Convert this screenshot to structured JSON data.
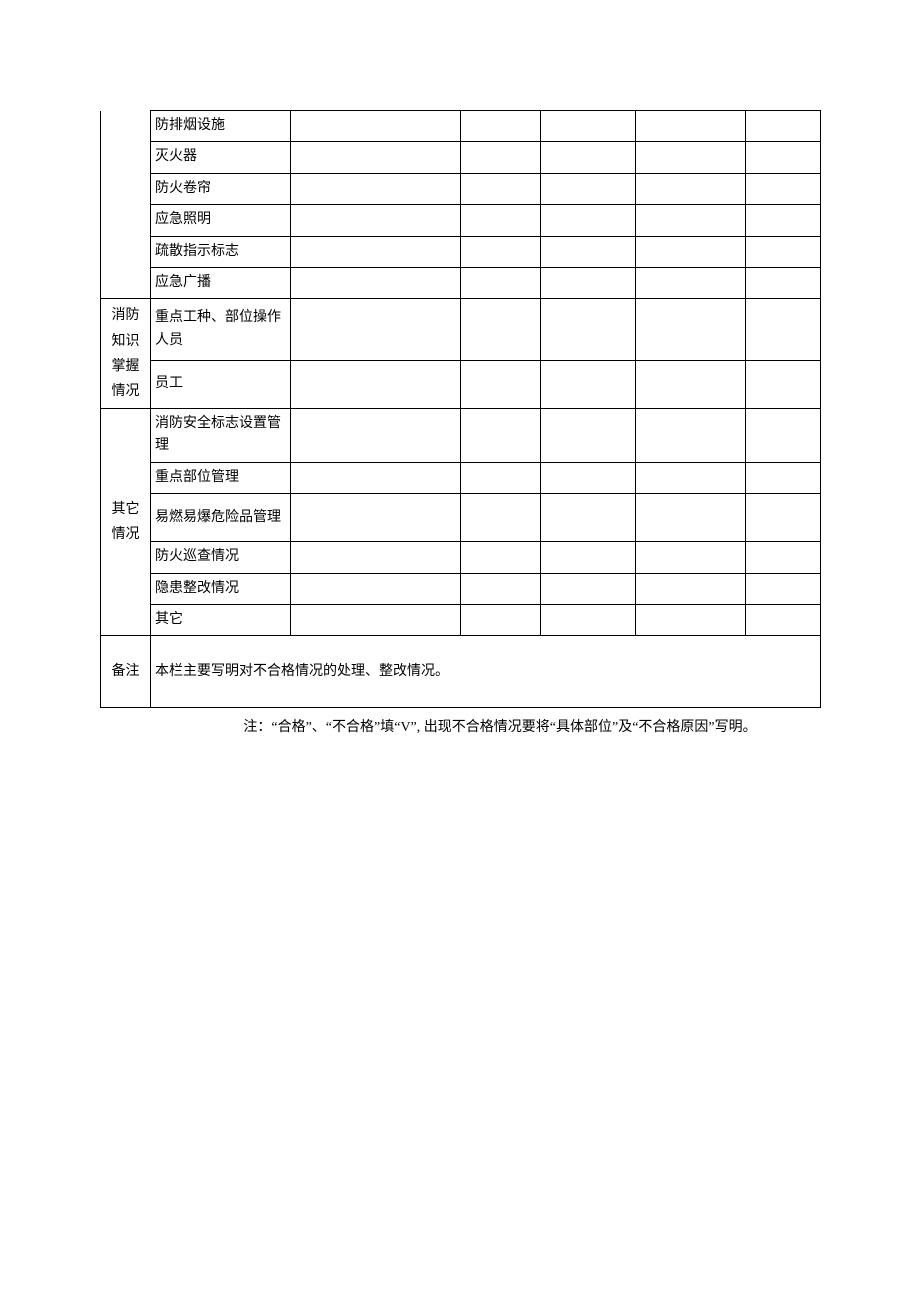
{
  "table": {
    "columns": {
      "col1_width": 50,
      "col2_width": 140,
      "col3_width": 170,
      "col4_width": 80,
      "col5_width": 95,
      "col6_width": 110,
      "col7_width": 75
    },
    "border_color": "#000000",
    "background_color": "#ffffff",
    "text_color": "#000000",
    "font_size": 14,
    "font_family": "SimSun",
    "sections": [
      {
        "group_label": "",
        "group_no_top_left": true,
        "rows": [
          {
            "item": "防排烟设施",
            "c3": "",
            "c4": "",
            "c5": "",
            "c6": "",
            "c7": ""
          },
          {
            "item": "灭火器",
            "c3": "",
            "c4": "",
            "c5": "",
            "c6": "",
            "c7": ""
          },
          {
            "item": "防火卷帘",
            "c3": "",
            "c4": "",
            "c5": "",
            "c6": "",
            "c7": ""
          },
          {
            "item": "应急照明",
            "c3": "",
            "c4": "",
            "c5": "",
            "c6": "",
            "c7": ""
          },
          {
            "item": "疏散指示标志",
            "c3": "",
            "c4": "",
            "c5": "",
            "c6": "",
            "c7": ""
          },
          {
            "item": "应急广播",
            "c3": "",
            "c4": "",
            "c5": "",
            "c6": "",
            "c7": ""
          }
        ]
      },
      {
        "group_label": "消防知识掌握情况",
        "rows": [
          {
            "item": "重点工种、部位操作人员",
            "c3": "",
            "c4": "",
            "c5": "",
            "c6": "",
            "c7": ""
          },
          {
            "item": "员工",
            "c3": "",
            "c4": "",
            "c5": "",
            "c6": "",
            "c7": "",
            "tall": true
          }
        ]
      },
      {
        "group_label": "其它情况",
        "rows": [
          {
            "item": "消防安全标志设置管理",
            "c3": "",
            "c4": "",
            "c5": "",
            "c6": "",
            "c7": ""
          },
          {
            "item": "重点部位管理",
            "c3": "",
            "c4": "",
            "c5": "",
            "c6": "",
            "c7": ""
          },
          {
            "item": "易燃易爆危险品管理",
            "c3": "",
            "c4": "",
            "c5": "",
            "c6": "",
            "c7": "",
            "tall": true
          },
          {
            "item": "防火巡查情况",
            "c3": "",
            "c4": "",
            "c5": "",
            "c6": "",
            "c7": ""
          },
          {
            "item": "隐患整改情况",
            "c3": "",
            "c4": "",
            "c5": "",
            "c6": "",
            "c7": ""
          },
          {
            "item": "其它",
            "c3": "",
            "c4": "",
            "c5": "",
            "c6": "",
            "c7": ""
          }
        ]
      }
    ],
    "remark": {
      "label": "备注",
      "text": "本栏主要写明对不合格情况的处理、整改情况。"
    }
  },
  "footnote": "注：“合格”、“不合格”填“V”, 出现不合格情况要将“具体部位”及“不合格原因”写明。"
}
